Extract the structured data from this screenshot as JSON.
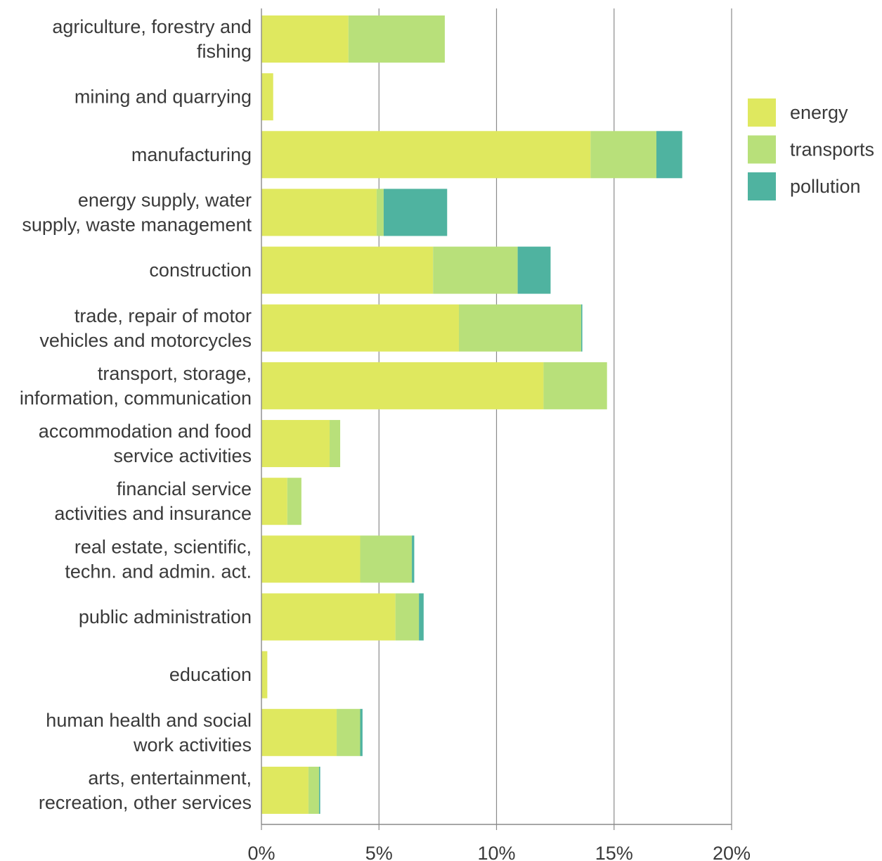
{
  "chart_data": {
    "type": "bar",
    "orientation": "horizontal",
    "stacked": true,
    "title": "",
    "xlabel": "",
    "ylabel": "",
    "xlim": [
      0,
      20
    ],
    "x_ticks": [
      0,
      5,
      10,
      15,
      20
    ],
    "x_tick_labels": [
      "0%",
      "5%",
      "10%",
      "15%",
      "20%"
    ],
    "grid": "vertical",
    "legend_position": "right",
    "categories": [
      [
        "agriculture, forestry and",
        "fishing"
      ],
      [
        "mining and quarrying"
      ],
      [
        "manufacturing"
      ],
      [
        "energy supply, water",
        "supply, waste management"
      ],
      [
        "construction"
      ],
      [
        "trade, repair of motor",
        "vehicles and motorcycles"
      ],
      [
        "transport, storage,",
        "information, communication"
      ],
      [
        "accommodation and food",
        "service activities"
      ],
      [
        "financial service",
        "activities and insurance"
      ],
      [
        "real estate, scientific,",
        "techn. and admin. act."
      ],
      [
        "public administration"
      ],
      [
        "education"
      ],
      [
        "human health and social",
        "work activities"
      ],
      [
        "arts, entertainment,",
        "recreation, other services"
      ]
    ],
    "series": [
      {
        "name": "energy",
        "color": "#dfe85f",
        "values": [
          3.7,
          0.5,
          14.0,
          4.9,
          7.3,
          8.4,
          12.0,
          2.9,
          1.1,
          4.2,
          5.7,
          0.25,
          3.2,
          2.0
        ]
      },
      {
        "name": "transports",
        "color": "#b8e07a",
        "values": [
          4.1,
          0.0,
          2.8,
          0.3,
          3.6,
          5.2,
          2.7,
          0.45,
          0.6,
          2.2,
          1.0,
          0.0,
          1.0,
          0.45
        ]
      },
      {
        "name": "pollution",
        "color": "#4fb3a0",
        "values": [
          0.0,
          0.0,
          1.1,
          2.7,
          1.4,
          0.05,
          0.0,
          0.0,
          0.0,
          0.1,
          0.2,
          0.0,
          0.1,
          0.05
        ]
      }
    ]
  }
}
